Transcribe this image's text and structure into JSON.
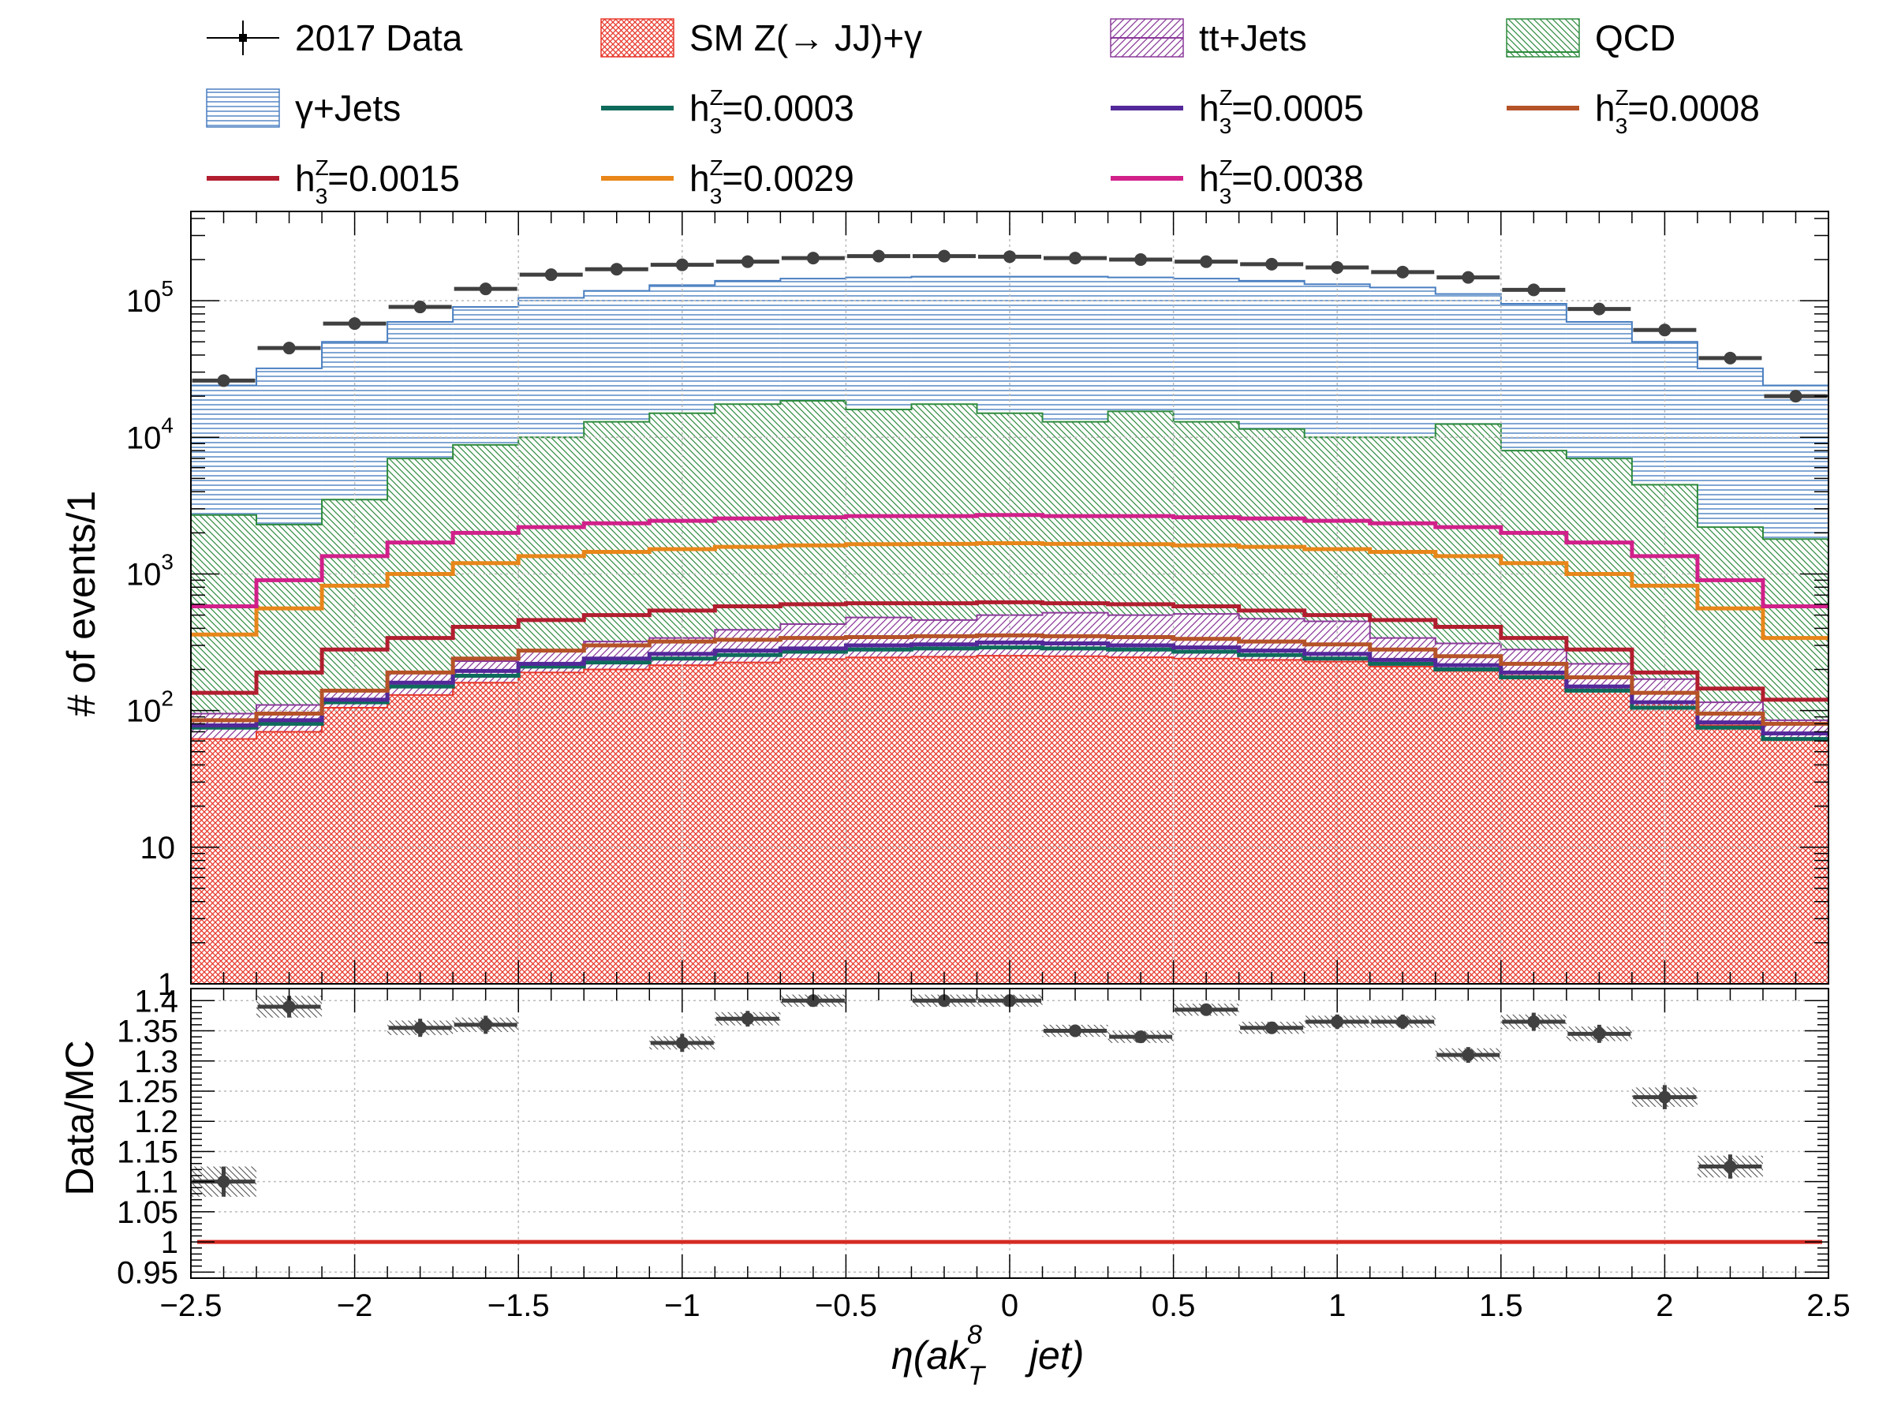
{
  "chart_data": [
    {
      "type": "histogram-stack",
      "panel": "main",
      "ylabel": "# of events/1",
      "yscale": "log",
      "ylim": [
        1,
        450000
      ],
      "grid": true,
      "legend_position": "top",
      "xlim": [
        -2.5,
        2.5
      ],
      "bin_edges": [
        -2.5,
        -2.3,
        -2.1,
        -1.9,
        -1.7,
        -1.5,
        -1.3,
        -1.1,
        -0.9,
        -0.7,
        -0.5,
        -0.3,
        -0.1,
        0.1,
        0.3,
        0.5,
        0.7,
        0.9,
        1.1,
        1.3,
        1.5,
        1.7,
        1.9,
        2.1,
        2.3,
        2.5
      ],
      "y_ticks": [
        {
          "value": 1,
          "label": "1"
        },
        {
          "value": 10,
          "label": "10"
        },
        {
          "value": 100,
          "label": "10",
          "exp": "2"
        },
        {
          "value": 1000,
          "label": "10",
          "exp": "3"
        },
        {
          "value": 10000,
          "label": "10",
          "exp": "4"
        },
        {
          "value": 100000,
          "label": "10",
          "exp": "5"
        }
      ],
      "stack": [
        {
          "name": "SM Z(→ JJ)+γ",
          "color": "#e8382c",
          "pattern": "hatch-cross",
          "cumulative": [
            62,
            70,
            105,
            130,
            160,
            190,
            200,
            215,
            225,
            238,
            245,
            248,
            252,
            250,
            246,
            240,
            235,
            228,
            210,
            195,
            180,
            150,
            115,
            78,
            62
          ]
        },
        {
          "name": "tt+Jets",
          "color": "#8b3a9a",
          "pattern": "hatch-diag",
          "cumulative": [
            95,
            110,
            140,
            190,
            230,
            270,
            320,
            340,
            390,
            430,
            480,
            460,
            500,
            520,
            500,
            510,
            470,
            450,
            340,
            310,
            280,
            220,
            170,
            115,
            85
          ]
        },
        {
          "name": "QCD",
          "color": "#2e8b3e",
          "pattern": "hatch-diag2",
          "cumulative": [
            2700,
            2300,
            3500,
            7000,
            8800,
            10000,
            13000,
            15000,
            17500,
            18500,
            16000,
            17500,
            15000,
            13000,
            15500,
            13000,
            11500,
            10000,
            10000,
            12500,
            8000,
            7000,
            4500,
            2200,
            1800
          ]
        },
        {
          "name": "γ+Jets",
          "color": "#4a7fc1",
          "pattern": "hatch-horiz",
          "cumulative": [
            24000,
            32000,
            50000,
            70000,
            90000,
            105000,
            118000,
            130000,
            140000,
            145000,
            148000,
            150000,
            150000,
            150000,
            148000,
            145000,
            140000,
            132000,
            125000,
            112000,
            95000,
            70000,
            50000,
            32000,
            24000
          ]
        }
      ],
      "signal_lines": [
        {
          "name": "h3Z=0.0003",
          "label_base": "h",
          "label_sup": "Z",
          "label_sub": "3",
          "label_rest": "=0.0003",
          "color": "#0e6b5b",
          "values": [
            75,
            80,
            115,
            150,
            180,
            210,
            225,
            240,
            255,
            270,
            280,
            285,
            290,
            285,
            280,
            270,
            255,
            240,
            220,
            200,
            175,
            140,
            105,
            75,
            62
          ]
        },
        {
          "name": "h3Z=0.0005",
          "label_base": "h",
          "label_sup": "Z",
          "label_sub": "3",
          "label_rest": "=0.0005",
          "color": "#53289a",
          "values": [
            78,
            85,
            120,
            160,
            195,
            220,
            240,
            260,
            275,
            285,
            300,
            305,
            315,
            310,
            300,
            290,
            275,
            260,
            235,
            215,
            190,
            150,
            115,
            82,
            68
          ]
        },
        {
          "name": "h3Z=0.0008",
          "label_base": "h",
          "label_sup": "Z",
          "label_sub": "3",
          "label_rest": "=0.0008",
          "color": "#b55328",
          "values": [
            85,
            95,
            140,
            190,
            240,
            275,
            300,
            320,
            330,
            340,
            345,
            350,
            355,
            350,
            345,
            335,
            320,
            305,
            280,
            250,
            220,
            175,
            135,
            95,
            80
          ]
        },
        {
          "name": "h3Z=0.0015",
          "label_base": "h",
          "label_sup": "Z",
          "label_sub": "3",
          "label_rest": "=0.0015",
          "color": "#b11e2f",
          "values": [
            135,
            190,
            280,
            340,
            410,
            460,
            500,
            540,
            580,
            600,
            610,
            610,
            620,
            610,
            600,
            580,
            540,
            500,
            460,
            410,
            340,
            280,
            190,
            145,
            120
          ]
        },
        {
          "name": "h3Z=0.0029",
          "label_base": "h",
          "label_sup": "Z",
          "label_sub": "3",
          "label_rest": "=0.0029",
          "color": "#e8861a",
          "values": [
            360,
            560,
            820,
            1000,
            1200,
            1350,
            1450,
            1520,
            1580,
            1620,
            1650,
            1660,
            1680,
            1660,
            1650,
            1620,
            1580,
            1520,
            1450,
            1350,
            1200,
            1000,
            820,
            560,
            340
          ]
        },
        {
          "name": "h3Z=0.0038",
          "label_base": "h",
          "label_sup": "Z",
          "label_sub": "3",
          "label_rest": "=0.0038",
          "color": "#d1208a",
          "values": [
            580,
            900,
            1350,
            1700,
            2000,
            2200,
            2350,
            2450,
            2550,
            2600,
            2650,
            2650,
            2700,
            2650,
            2650,
            2600,
            2550,
            2450,
            2350,
            2200,
            2000,
            1700,
            1350,
            900,
            580
          ]
        }
      ],
      "data_points": {
        "name": "2017 Data",
        "color": "#404040",
        "x": [
          -2.4,
          -2.2,
          -2.0,
          -1.8,
          -1.6,
          -1.4,
          -1.2,
          -1.0,
          -0.8,
          -0.6,
          -0.4,
          -0.2,
          0.0,
          0.2,
          0.4,
          0.6,
          0.8,
          1.0,
          1.2,
          1.4,
          1.6,
          1.8,
          2.0,
          2.2,
          2.4
        ],
        "y": [
          26000,
          45000,
          68000,
          90000,
          122000,
          155000,
          170000,
          183000,
          193000,
          205000,
          212000,
          212000,
          210000,
          205000,
          200000,
          193000,
          185000,
          175000,
          162000,
          148000,
          120000,
          87000,
          61000,
          38000,
          20000
        ]
      }
    },
    {
      "type": "ratio",
      "panel": "ratio",
      "ylabel": "Data/MC",
      "xlabel": "η(ak_T^8   jet)",
      "xlabel_parts": {
        "pre": "η(ak",
        "sub": "T",
        "sup": "8",
        "post": "jet)"
      },
      "ylim": [
        0.94,
        1.42
      ],
      "xlim": [
        -2.5,
        2.5
      ],
      "grid": true,
      "x_ticks": [
        {
          "value": -2.5,
          "label": "−2.5"
        },
        {
          "value": -2,
          "label": "−2"
        },
        {
          "value": -1.5,
          "label": "−1.5"
        },
        {
          "value": -1,
          "label": "−1"
        },
        {
          "value": -0.5,
          "label": "−0.5"
        },
        {
          "value": 0,
          "label": "0"
        },
        {
          "value": 0.5,
          "label": "0.5"
        },
        {
          "value": 1,
          "label": "1"
        },
        {
          "value": 1.5,
          "label": "1.5"
        },
        {
          "value": 2,
          "label": "2"
        },
        {
          "value": 2.5,
          "label": "2.5"
        }
      ],
      "y_ticks": [
        {
          "value": 0.95,
          "label": "0.95"
        },
        {
          "value": 1.0,
          "label": "1"
        },
        {
          "value": 1.05,
          "label": "1.05"
        },
        {
          "value": 1.1,
          "label": "1.1"
        },
        {
          "value": 1.15,
          "label": "1.15"
        },
        {
          "value": 1.2,
          "label": "1.2"
        },
        {
          "value": 1.25,
          "label": "1.25"
        },
        {
          "value": 1.3,
          "label": "1.3"
        },
        {
          "value": 1.35,
          "label": "1.35"
        },
        {
          "value": 1.4,
          "label": "1.4"
        }
      ],
      "reference_line": {
        "value": 1.0,
        "color": "#d42b24"
      },
      "points": {
        "x": [
          -2.4,
          -2.2,
          -1.8,
          -1.6,
          -1.0,
          -0.8,
          -0.6,
          -0.2,
          0.0,
          0.2,
          0.4,
          0.6,
          0.8,
          1.0,
          1.2,
          1.4,
          1.6,
          1.8,
          2.0,
          2.2
        ],
        "y": [
          1.1,
          1.39,
          1.355,
          1.36,
          1.33,
          1.37,
          1.4,
          1.4,
          1.4,
          1.35,
          1.34,
          1.385,
          1.355,
          1.365,
          1.365,
          1.31,
          1.365,
          1.345,
          1.24,
          1.125
        ],
        "err": [
          0.025,
          0.018,
          0.015,
          0.015,
          0.015,
          0.013,
          0.01,
          0.01,
          0.01,
          0.01,
          0.01,
          0.01,
          0.01,
          0.012,
          0.012,
          0.013,
          0.015,
          0.015,
          0.02,
          0.02
        ],
        "band": [
          0.025,
          0.018,
          0.012,
          0.012,
          0.011,
          0.011,
          0.01,
          0.01,
          0.01,
          0.01,
          0.01,
          0.01,
          0.01,
          0.01,
          0.01,
          0.011,
          0.012,
          0.012,
          0.016,
          0.018
        ]
      }
    }
  ],
  "legend": [
    {
      "label": "2017 Data",
      "kind": "marker",
      "color": "#000000"
    },
    {
      "label": "SM Z(→ JJ)+γ",
      "kind": "fill",
      "color": "#e8382c",
      "pattern": "hatch-cross"
    },
    {
      "label": "tt+Jets",
      "kind": "fill",
      "color": "#8b3a9a",
      "pattern": "hatch-diag"
    },
    {
      "label": "QCD",
      "kind": "fill",
      "color": "#2e8b3e",
      "pattern": "hatch-diag2"
    },
    {
      "label": "γ+Jets",
      "kind": "fill",
      "color": "#4a7fc1",
      "pattern": "hatch-horiz"
    },
    {
      "label_base": "h",
      "label_sup": "Z",
      "label_sub": "3",
      "label_rest": "=0.0003",
      "kind": "line",
      "color": "#0e6b5b"
    },
    {
      "label_base": "h",
      "label_sup": "Z",
      "label_sub": "3",
      "label_rest": "=0.0005",
      "kind": "line",
      "color": "#53289a"
    },
    {
      "label_base": "h",
      "label_sup": "Z",
      "label_sub": "3",
      "label_rest": "=0.0008",
      "kind": "line",
      "color": "#b55328"
    },
    {
      "label_base": "h",
      "label_sup": "Z",
      "label_sub": "3",
      "label_rest": "=0.0015",
      "kind": "line",
      "color": "#b11e2f"
    },
    {
      "label_base": "h",
      "label_sup": "Z",
      "label_sub": "3",
      "label_rest": "=0.0029",
      "kind": "line",
      "color": "#e8861a"
    },
    {
      "label_base": "h",
      "label_sup": "Z",
      "label_sub": "3",
      "label_rest": "=0.0038",
      "kind": "line",
      "color": "#d1208a"
    }
  ]
}
